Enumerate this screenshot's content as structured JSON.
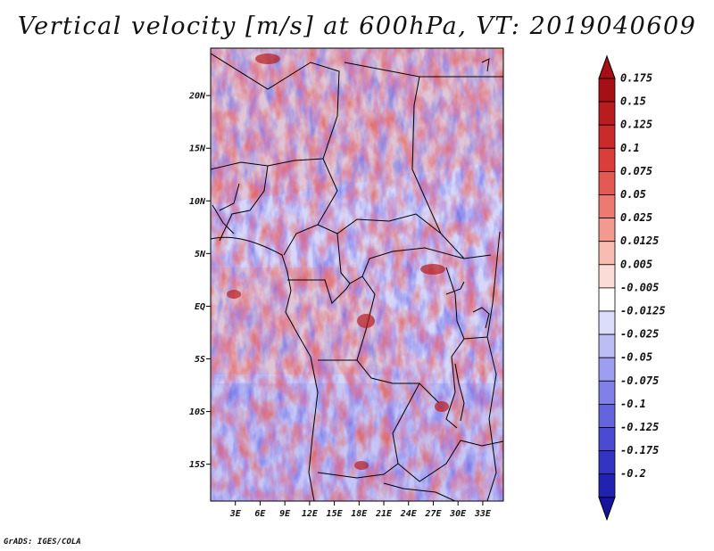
{
  "title": "Vertical velocity [m/s] at 600hPa, VT: 2019040609",
  "footer": "GrADS: IGES/COLA",
  "map": {
    "lon_range": [
      0,
      35.5
    ],
    "lat_range": [
      -18.5,
      24.5
    ],
    "lat_ticks": [
      {
        "value": 20,
        "label": "20N"
      },
      {
        "value": 15,
        "label": "15N"
      },
      {
        "value": 10,
        "label": "10N"
      },
      {
        "value": 5,
        "label": "5N"
      },
      {
        "value": 0,
        "label": "EQ"
      },
      {
        "value": -5,
        "label": "5S"
      },
      {
        "value": -10,
        "label": "10S"
      },
      {
        "value": -15,
        "label": "15S"
      }
    ],
    "lon_ticks": [
      {
        "value": 3,
        "label": "3E"
      },
      {
        "value": 6,
        "label": "6E"
      },
      {
        "value": 9,
        "label": "9E"
      },
      {
        "value": 12,
        "label": "12E"
      },
      {
        "value": 15,
        "label": "15E"
      },
      {
        "value": 18,
        "label": "18E"
      },
      {
        "value": 21,
        "label": "21E"
      },
      {
        "value": 24,
        "label": "24E"
      },
      {
        "value": 27,
        "label": "27E"
      },
      {
        "value": 30,
        "label": "30E"
      },
      {
        "value": 33,
        "label": "33E"
      }
    ]
  },
  "colorbar": {
    "levels": [
      {
        "label": "0.175",
        "color": "#a50f15"
      },
      {
        "label": "0.15",
        "color": "#b81c1e"
      },
      {
        "label": "0.125",
        "color": "#cb2a2a"
      },
      {
        "label": "0.1",
        "color": "#db3d3a"
      },
      {
        "label": "0.075",
        "color": "#e45a52"
      },
      {
        "label": "0.05",
        "color": "#ec7a70"
      },
      {
        "label": "0.025",
        "color": "#f39a8f"
      },
      {
        "label": "0.0125",
        "color": "#f8bcb2"
      },
      {
        "label": "0.005",
        "color": "#fcdcd6"
      },
      {
        "label": "-0.005",
        "color": "#ffffff"
      },
      {
        "label": "-0.0125",
        "color": "#dcdcfb"
      },
      {
        "label": "-0.025",
        "color": "#bdbdf6"
      },
      {
        "label": "-0.05",
        "color": "#9e9ef0"
      },
      {
        "label": "-0.075",
        "color": "#8080e8"
      },
      {
        "label": "-0.1",
        "color": "#6464df"
      },
      {
        "label": "-0.125",
        "color": "#4a4ad3"
      },
      {
        "label": "-0.175",
        "color": "#3434c4"
      },
      {
        "label": "-0.2",
        "color": "#2222b2"
      }
    ],
    "top_color": "#a50f15",
    "bottom_color": "#1414a0"
  }
}
